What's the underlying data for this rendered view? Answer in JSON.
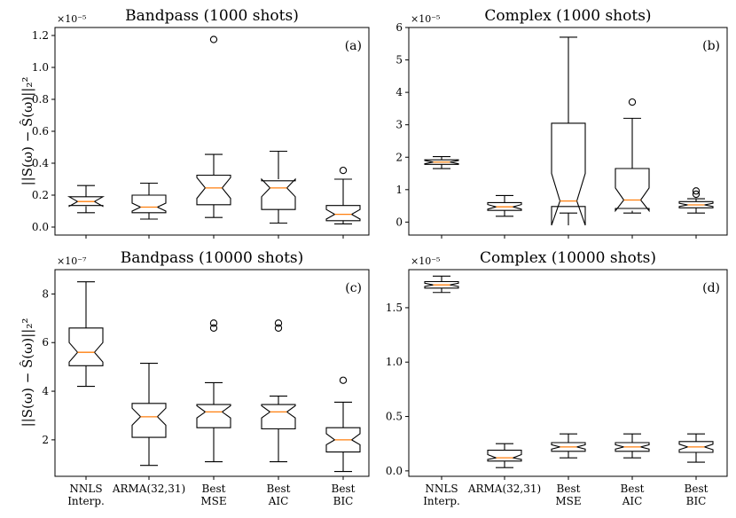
{
  "ylabel_top": "||S(ω) − Ŝ(ω)||₂²",
  "ylabel_bottom": "||S(ω) − Ŝ(ω)||₂²",
  "x_labels": [
    [
      "NNLS",
      "Interp."
    ],
    [
      "ARMA(32,31)"
    ],
    [
      "Best",
      "MSE"
    ],
    [
      "Best",
      "AIC"
    ],
    [
      "Best",
      "BIC"
    ]
  ],
  "chart_data": [
    {
      "type": "box",
      "title": "Bandpass (1000 shots)",
      "panel_label": "(a)",
      "exponent": "×10⁻⁵",
      "ylim": [
        -0.05,
        1.25
      ],
      "yticks": [
        0.0,
        0.2,
        0.4,
        0.6,
        0.8,
        1.0,
        1.2
      ],
      "ytick_labels": [
        "0.0",
        "0.2",
        "0.4",
        "0.6",
        "0.8",
        "1.0",
        "1.2"
      ],
      "categories": [
        "NNLS Interp.",
        "ARMA(32,31)",
        "Best MSE",
        "Best AIC",
        "Best BIC"
      ],
      "boxes": [
        {
          "wlo": 0.09,
          "q1": 0.135,
          "med": 0.16,
          "q3": 0.19,
          "whi": 0.26,
          "nlo": 0.13,
          "nhi": 0.19,
          "fliers": []
        },
        {
          "wlo": 0.05,
          "q1": 0.09,
          "med": 0.125,
          "q3": 0.2,
          "whi": 0.275,
          "nlo": 0.1,
          "nhi": 0.15,
          "fliers": []
        },
        {
          "wlo": 0.06,
          "q1": 0.14,
          "med": 0.245,
          "q3": 0.325,
          "whi": 0.455,
          "nlo": 0.18,
          "nhi": 0.31,
          "fliers": [
            1.175
          ]
        },
        {
          "wlo": 0.025,
          "q1": 0.11,
          "med": 0.245,
          "q3": 0.29,
          "whi": 0.475,
          "nlo": 0.19,
          "nhi": 0.3,
          "fliers": []
        },
        {
          "wlo": 0.02,
          "q1": 0.04,
          "med": 0.08,
          "q3": 0.135,
          "whi": 0.3,
          "nlo": 0.05,
          "nhi": 0.11,
          "fliers": [
            0.355
          ]
        }
      ]
    },
    {
      "type": "box",
      "title": "Complex (1000 shots)",
      "panel_label": "(b)",
      "exponent": "×10⁻⁵",
      "ylim": [
        -0.4,
        6.0
      ],
      "yticks": [
        0,
        1,
        2,
        3,
        4,
        5,
        6
      ],
      "ytick_labels": [
        "0",
        "1",
        "2",
        "3",
        "4",
        "5",
        "6"
      ],
      "categories": [
        "NNLS Interp.",
        "ARMA(32,31)",
        "Best MSE",
        "Best AIC",
        "Best BIC"
      ],
      "boxes": [
        {
          "wlo": 1.65,
          "q1": 1.78,
          "med": 1.85,
          "q3": 1.92,
          "whi": 2.02,
          "nlo": 1.8,
          "nhi": 1.9,
          "fliers": []
        },
        {
          "wlo": 0.18,
          "q1": 0.36,
          "med": 0.47,
          "q3": 0.6,
          "whi": 0.82,
          "nlo": 0.4,
          "nhi": 0.54,
          "fliers": []
        },
        {
          "wlo": 0.28,
          "q1": 0.48,
          "med": 0.65,
          "q3": 3.05,
          "whi": 5.7,
          "nlo": -0.1,
          "nhi": 1.5,
          "fliers": []
        },
        {
          "wlo": 0.28,
          "q1": 0.42,
          "med": 0.68,
          "q3": 1.65,
          "whi": 3.2,
          "nlo": 0.35,
          "nhi": 1.05,
          "fliers": [
            3.7
          ]
        },
        {
          "wlo": 0.28,
          "q1": 0.44,
          "med": 0.53,
          "q3": 0.63,
          "whi": 0.72,
          "nlo": 0.48,
          "nhi": 0.58,
          "fliers": [
            0.86,
            0.96
          ]
        }
      ]
    },
    {
      "type": "box",
      "title": "Bandpass (10000 shots)",
      "panel_label": "(c)",
      "exponent": "×10⁻⁷",
      "ylim": [
        0.5,
        9.0
      ],
      "yticks": [
        2,
        4,
        6,
        8
      ],
      "ytick_labels": [
        "2",
        "4",
        "6",
        "8"
      ],
      "categories": [
        "NNLS Interp.",
        "ARMA(32,31)",
        "Best MSE",
        "Best AIC",
        "Best BIC"
      ],
      "boxes": [
        {
          "wlo": 4.2,
          "q1": 5.05,
          "med": 5.6,
          "q3": 6.6,
          "whi": 8.5,
          "nlo": 5.2,
          "nhi": 6.0,
          "fliers": []
        },
        {
          "wlo": 0.95,
          "q1": 2.1,
          "med": 2.95,
          "q3": 3.5,
          "whi": 5.15,
          "nlo": 2.6,
          "nhi": 3.3,
          "fliers": []
        },
        {
          "wlo": 1.1,
          "q1": 2.5,
          "med": 3.15,
          "q3": 3.45,
          "whi": 4.35,
          "nlo": 2.9,
          "nhi": 3.4,
          "fliers": [
            6.6,
            6.8
          ]
        },
        {
          "wlo": 1.1,
          "q1": 2.45,
          "med": 3.15,
          "q3": 3.45,
          "whi": 3.8,
          "nlo": 2.9,
          "nhi": 3.4,
          "fliers": [
            6.6,
            6.8
          ]
        },
        {
          "wlo": 0.7,
          "q1": 1.5,
          "med": 2.0,
          "q3": 2.5,
          "whi": 3.55,
          "nlo": 1.8,
          "nhi": 2.25,
          "fliers": [
            4.45
          ]
        }
      ]
    },
    {
      "type": "box",
      "title": "Complex (10000 shots)",
      "panel_label": "(d)",
      "exponent": "×10⁻⁵",
      "ylim": [
        -0.05,
        1.85
      ],
      "yticks": [
        0.0,
        0.5,
        1.0,
        1.5
      ],
      "ytick_labels": [
        "0.0",
        "0.5",
        "1.0",
        "1.5"
      ],
      "categories": [
        "NNLS Interp.",
        "ARMA(32,31)",
        "Best MSE",
        "Best AIC",
        "Best BIC"
      ],
      "boxes": [
        {
          "wlo": 1.64,
          "q1": 1.68,
          "med": 1.71,
          "q3": 1.74,
          "whi": 1.79,
          "nlo": 1.695,
          "nhi": 1.725,
          "fliers": []
        },
        {
          "wlo": 0.03,
          "q1": 0.09,
          "med": 0.12,
          "q3": 0.19,
          "whi": 0.25,
          "nlo": 0.105,
          "nhi": 0.15,
          "fliers": []
        },
        {
          "wlo": 0.12,
          "q1": 0.18,
          "med": 0.22,
          "q3": 0.26,
          "whi": 0.34,
          "nlo": 0.2,
          "nhi": 0.24,
          "fliers": []
        },
        {
          "wlo": 0.12,
          "q1": 0.18,
          "med": 0.22,
          "q3": 0.26,
          "whi": 0.34,
          "nlo": 0.2,
          "nhi": 0.24,
          "fliers": []
        },
        {
          "wlo": 0.08,
          "q1": 0.17,
          "med": 0.22,
          "q3": 0.27,
          "whi": 0.34,
          "nlo": 0.195,
          "nhi": 0.245,
          "fliers": []
        }
      ]
    }
  ]
}
